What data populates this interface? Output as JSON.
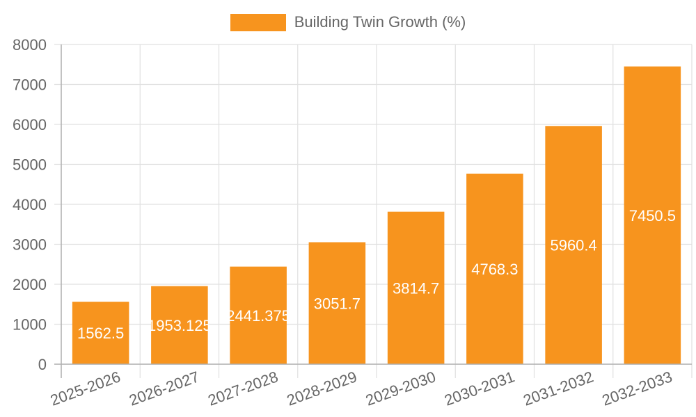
{
  "legend": {
    "label": "Building Twin Growth (%)",
    "color": "#f7941e"
  },
  "chart_data": {
    "type": "bar",
    "title": "",
    "xlabel": "",
    "ylabel": "",
    "categories": [
      "2025-2026",
      "2026-2027",
      "2027-2028",
      "2028-2029",
      "2029-2030",
      "2030-2031",
      "2031-2032",
      "2032-2033"
    ],
    "series": [
      {
        "name": "Building Twin Growth (%)",
        "color": "#f7941e",
        "values": [
          1562.5,
          1953.125,
          2441.375,
          3051.7,
          3814.7,
          4768.3,
          5960.4,
          7450.5
        ],
        "labels": [
          "1562.5",
          "1953.125",
          "2441.375",
          "3051.7",
          "3814.7",
          "4768.3",
          "5960.4",
          "7450.5"
        ]
      }
    ],
    "ylim": [
      0,
      8000
    ],
    "yticks": [
      0,
      1000,
      2000,
      3000,
      4000,
      5000,
      6000,
      7000,
      8000
    ],
    "grid": true,
    "legend_position": "top",
    "data_labels": true
  }
}
